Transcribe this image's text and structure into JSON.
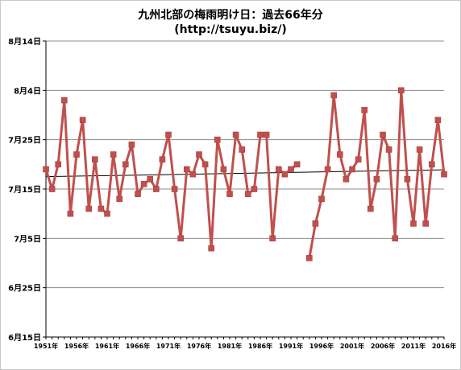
{
  "chart_data": {
    "type": "line",
    "title": "九州北部の梅雨明け日：過去66年分",
    "subtitle": "(http://tsuyu.biz/)",
    "xlabel": "",
    "ylabel": "",
    "y_tick_labels": [
      "8月14日",
      "8月4日",
      "7月25日",
      "7月15日",
      "7月5日",
      "6月25日",
      "6月15日"
    ],
    "y_tick_days": [
      44,
      34,
      24,
      14,
      4,
      -6,
      -16
    ],
    "ylim": [
      -16,
      44
    ],
    "y_unit": "days after July 1 (July 1 = 0)",
    "x_tick_labels": [
      "1951年",
      "1956年",
      "1961年",
      "1966年",
      "1971年",
      "1976年",
      "1981年",
      "1986年",
      "1991年",
      "1996年",
      "2001年",
      "2006年",
      "2011年",
      "2016年"
    ],
    "x_tick_years": [
      1951,
      1956,
      1961,
      1966,
      1971,
      1976,
      1981,
      1986,
      1991,
      1996,
      2001,
      2006,
      2011,
      2016
    ],
    "xlim": [
      1951,
      2016
    ],
    "grid": "horizontal",
    "colors": {
      "series": "#c0504d",
      "trend": "#000000",
      "grid": "#8c8c8c"
    },
    "series": [
      {
        "x": [
          1951,
          1952,
          1953,
          1954,
          1955,
          1956,
          1957,
          1958,
          1959,
          1960,
          1961,
          1962,
          1963,
          1964,
          1965,
          1966,
          1967,
          1968,
          1969,
          1970,
          1971,
          1972,
          1973,
          1974,
          1975,
          1976,
          1977,
          1978,
          1979,
          1980,
          1981,
          1982,
          1983,
          1984,
          1985,
          1986,
          1987,
          1988,
          1989,
          1990,
          1991,
          1992,
          1993,
          1994,
          1995,
          1996,
          1997,
          1998,
          1999,
          2000,
          2001,
          2002,
          2003,
          2004,
          2005,
          2006,
          2007,
          2008,
          2009,
          2010,
          2011,
          2012,
          2013,
          2014,
          2015,
          2016
        ],
        "values": [
          18,
          14,
          19,
          32,
          9,
          21,
          28,
          10,
          20,
          10,
          9,
          21,
          12,
          19,
          23,
          13,
          15,
          16,
          14,
          20,
          25,
          14,
          4,
          18,
          17,
          21,
          19,
          2,
          24,
          18,
          13,
          25,
          22,
          13,
          14,
          25,
          25,
          4,
          18,
          17,
          18,
          19,
          null,
          0,
          7,
          12,
          18,
          33,
          21,
          16,
          18,
          20,
          30,
          10,
          16,
          25,
          22,
          4,
          34,
          16,
          7,
          22,
          7,
          19,
          28,
          17
        ],
        "units": "days after July 1"
      }
    ],
    "trendline": {
      "type": "linear",
      "start": [
        1951,
        16.5
      ],
      "end": [
        2016,
        17.9
      ]
    }
  }
}
